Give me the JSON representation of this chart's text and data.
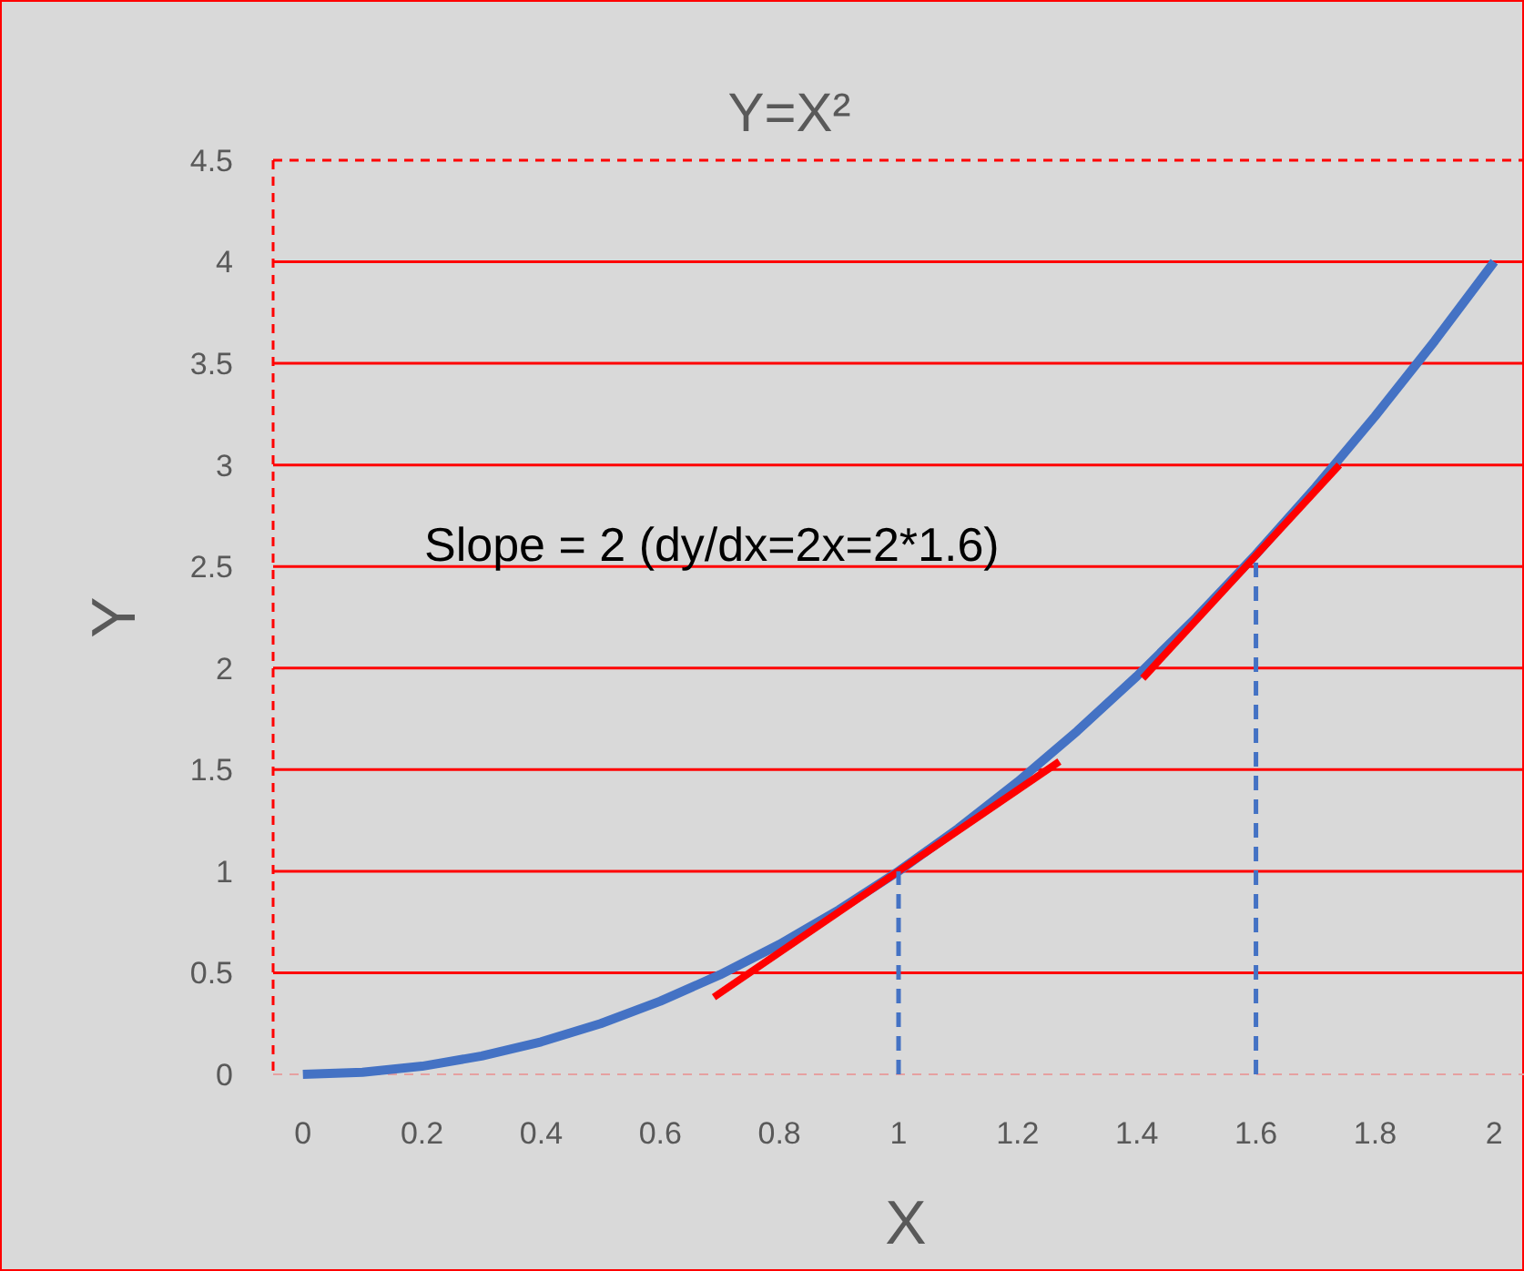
{
  "chart_data": {
    "type": "line",
    "title": "Y=X²",
    "xlabel": "X",
    "ylabel": "Y",
    "xlim": [
      -0.05,
      2.05
    ],
    "xticks": [
      0,
      0.2,
      0.4,
      0.6,
      0.8,
      1,
      1.2,
      1.4,
      1.6,
      1.8,
      2
    ],
    "ylim": [
      0,
      4.5
    ],
    "yticks": [
      0,
      0.5,
      1,
      1.5,
      2,
      2.5,
      3,
      3.5,
      4,
      4.5
    ],
    "grid": "y",
    "marker": "none",
    "series": [
      {
        "color": "#4472c4",
        "line_style": "solid",
        "x": [
          0,
          0.1,
          0.2,
          0.3,
          0.4,
          0.5,
          0.6,
          0.7,
          0.8,
          0.9,
          1,
          1.1,
          1.2,
          1.3,
          1.4,
          1.5,
          1.6,
          1.7,
          1.8,
          1.9,
          2
        ],
        "values": [
          0,
          0.01,
          0.04,
          0.09,
          0.16,
          0.25,
          0.36,
          0.49,
          0.64,
          0.81,
          1,
          1.21,
          1.44,
          1.69,
          1.96,
          2.25,
          2.56,
          2.89,
          3.24,
          3.61,
          4
        ]
      },
      {
        "color": "#ff0000",
        "line_style": "solid",
        "x": [
          0.69,
          1.27
        ],
        "values": [
          0.38,
          1.54
        ]
      },
      {
        "color": "#ff0000",
        "line_style": "solid",
        "x": [
          1.41,
          1.74
        ],
        "values": [
          1.95,
          3.0
        ]
      },
      {
        "color": "#4472c4",
        "line_style": "dashed",
        "x": [
          1,
          1
        ],
        "values": [
          0,
          1
        ]
      },
      {
        "color": "#4472c4",
        "line_style": "dashed",
        "x": [
          1.6,
          1.6
        ],
        "values": [
          0,
          2.56
        ]
      }
    ],
    "annotations": [
      "Slope = 2 (dy/dx=2x=2*1.6)"
    ]
  }
}
